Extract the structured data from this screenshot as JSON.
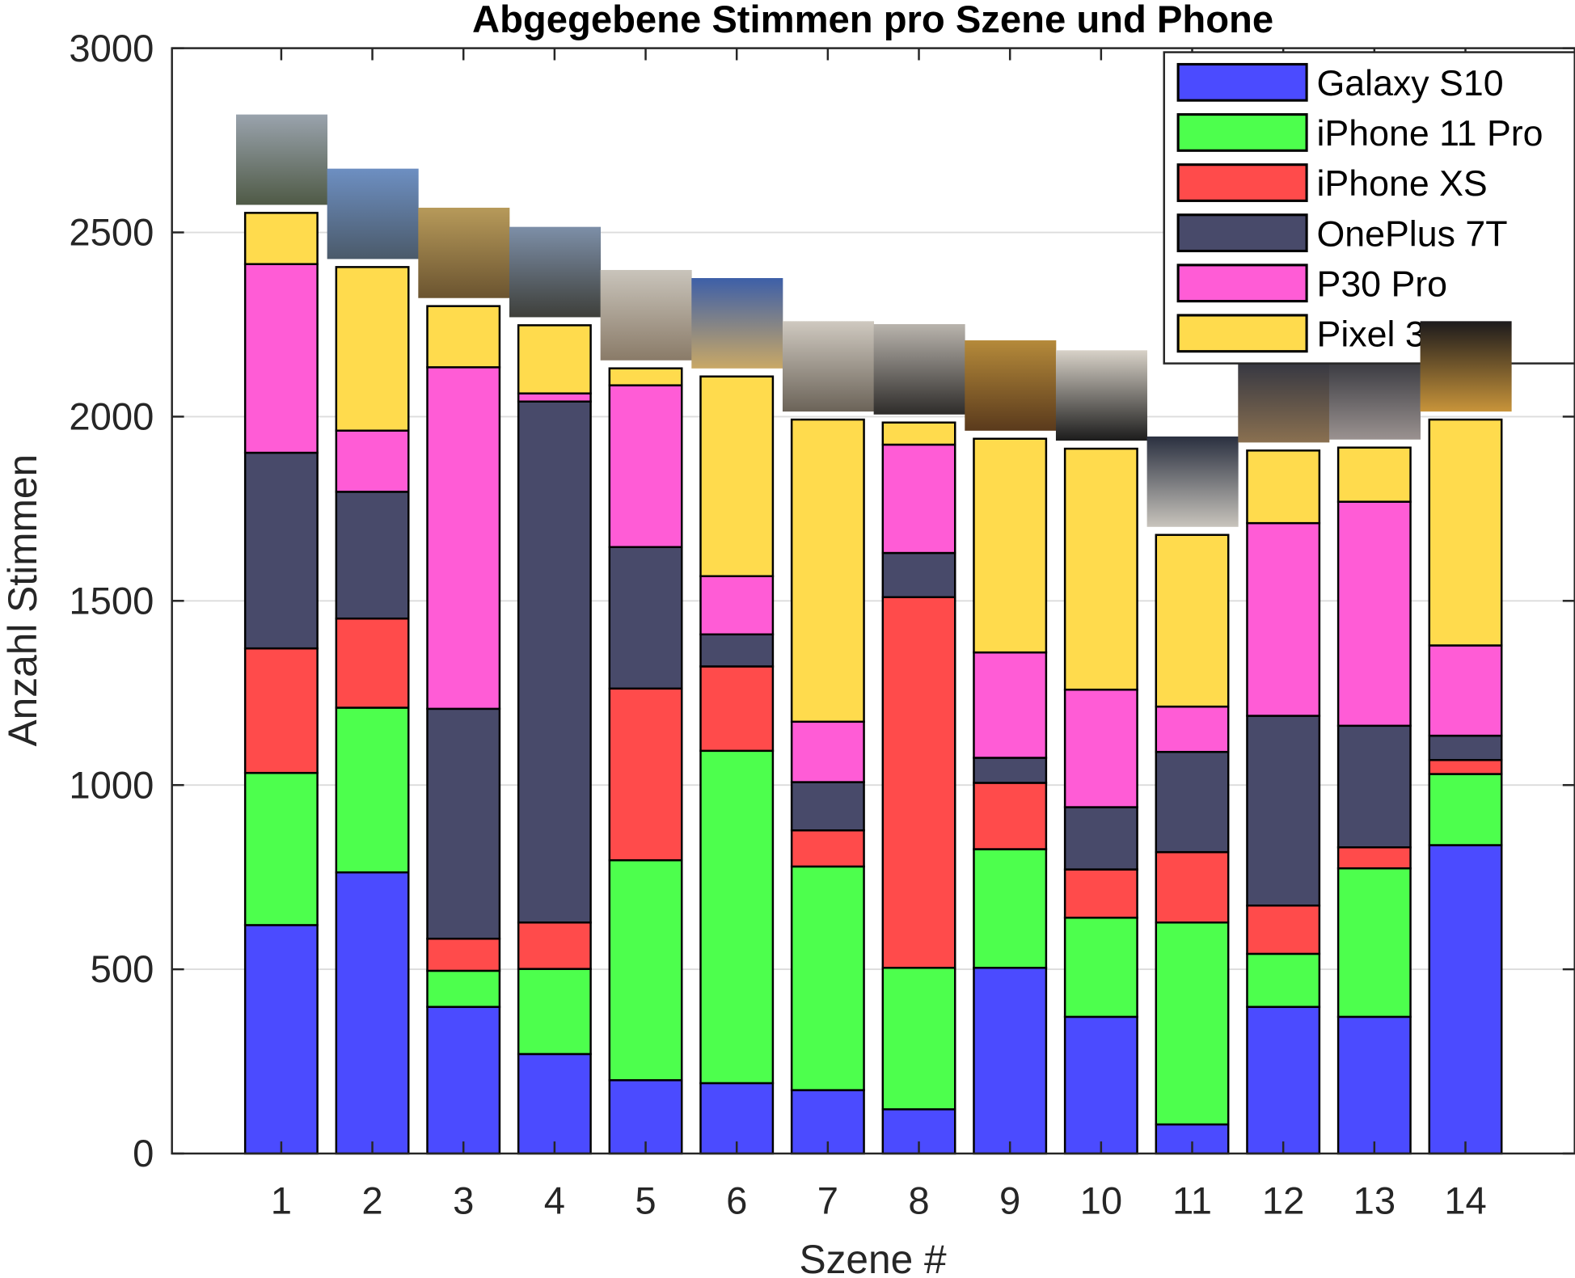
{
  "chart_data": {
    "type": "bar",
    "stacked": true,
    "title": "Abgegebene Stimmen pro Szene und Phone",
    "xlabel": "Szene #",
    "ylabel": "Anzahl Stimmen",
    "categories": [
      "1",
      "2",
      "3",
      "4",
      "5",
      "6",
      "7",
      "8",
      "9",
      "10",
      "11",
      "12",
      "13",
      "14"
    ],
    "ylim": [
      0,
      3000
    ],
    "xlim": [
      -0.2,
      15.2
    ],
    "yticks": [
      "0",
      "500",
      "1000",
      "1500",
      "2000",
      "2500",
      "3000"
    ],
    "grid": "y",
    "legend_position": "top-right",
    "series": [
      {
        "name": "Galaxy S10",
        "color": "#4b4bff",
        "values": [
          620,
          763,
          398,
          270,
          199,
          191,
          172,
          120,
          504,
          371,
          79,
          398,
          371,
          837
        ]
      },
      {
        "name": "iPhone 11 Pro",
        "color": "#4dff4d",
        "values": [
          413,
          447,
          98,
          231,
          597,
          902,
          607,
          384,
          322,
          269,
          548,
          144,
          403,
          193
        ]
      },
      {
        "name": "iPhone XS",
        "color": "#ff4b4b",
        "values": [
          338,
          242,
          87,
          126,
          466,
          229,
          98,
          1006,
          180,
          131,
          191,
          131,
          57,
          38
        ]
      },
      {
        "name": "OnePlus 7T",
        "color": "#484a6a",
        "values": [
          531,
          344,
          624,
          1414,
          384,
          87,
          131,
          120,
          68,
          169,
          272,
          515,
          330,
          66
        ]
      },
      {
        "name": "P30 Pro",
        "color": "#ff5cd6",
        "values": [
          512,
          166,
          927,
          22,
          439,
          158,
          164,
          294,
          286,
          319,
          123,
          523,
          608,
          245
        ]
      },
      {
        "name": "Pixel 3",
        "color": "#ffdb4d",
        "values": [
          139,
          444,
          166,
          185,
          46,
          542,
          820,
          60,
          580,
          654,
          466,
          197,
          147,
          613
        ]
      }
    ],
    "scene_photo_colors": [
      [
        "#9aa3ad",
        "#4f5a46"
      ],
      [
        "#6d8fc2",
        "#4b5a6a"
      ],
      [
        "#b79a5a",
        "#6b5430"
      ],
      [
        "#7d8fa8",
        "#3e3f3a"
      ],
      [
        "#c9c4bb",
        "#8a7b68"
      ],
      [
        "#3d5fa8",
        "#c9a866"
      ],
      [
        "#cfc9c0",
        "#6b6358"
      ],
      [
        "#b9b4ad",
        "#2e2c2a"
      ],
      [
        "#b58a3a",
        "#5a3a1c"
      ],
      [
        "#d8d2c8",
        "#1c1c1c"
      ],
      [
        "#2a3040",
        "#c8c4bc"
      ],
      [
        "#2b3040",
        "#8a7050"
      ],
      [
        "#2a2c34",
        "#9a9290"
      ],
      [
        "#1c1a1c",
        "#c8943a"
      ]
    ]
  }
}
